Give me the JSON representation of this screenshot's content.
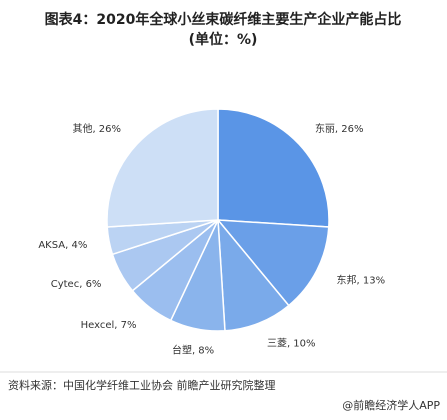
{
  "chart_data": {
    "type": "pie",
    "title": "图表4：2020年全球小丝束碳纤维主要生产企业产能占比",
    "subtitle": "(单位：%)",
    "values": [
      26,
      13,
      10,
      8,
      7,
      6,
      4,
      26
    ],
    "value_labels": [
      "东丽, 26%",
      "东邦, 13%",
      "三菱, 10%",
      "台塑, 8%",
      "Hexcel, 7%",
      "Cytec, 6%",
      "AKSA, 4%",
      "其他, 26%"
    ],
    "colors": [
      "#5a95e6",
      "#6a9fe8",
      "#7aaaea",
      "#8ab4ec",
      "#9bbeef",
      "#abc8f1",
      "#bbd3f3",
      "#cddff6"
    ],
    "source": "资料来源：中国化学纤维工业协会 前瞻产业研究院整理",
    "footer": "@前瞻经济学人APP"
  }
}
